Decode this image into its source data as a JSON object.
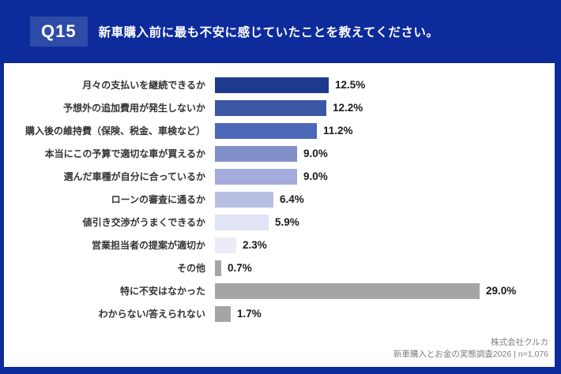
{
  "header": {
    "badge": "Q15",
    "title": "新車購入前に最も不安に感じていたことを教えてください。"
  },
  "colors": {
    "background": "#0d2b9b",
    "badge_bg": "#2e4ba8",
    "card_bg": "#ffffff",
    "label_color": "#333333",
    "value_color": "#1a1a1a",
    "gray_bar": "#a5a5a5"
  },
  "chart_data": {
    "type": "bar",
    "orientation": "horizontal",
    "title": "新車購入前に最も不安に感じていたこと",
    "unit": "%",
    "xlim": [
      0,
      31
    ],
    "grid": false,
    "legend": "none",
    "categories": [
      "月々の支払いを継続できるか",
      "予想外の追加費用が発生しないか",
      "購入後の維持費（保険、税金、車検など）",
      "本当にこの予算で適切な車が買えるか",
      "選んだ車種が自分に合っているか",
      "ローンの審査に通るか",
      "値引き交渉がうまくできるか",
      "営業担当者の提案が適切か",
      "その他",
      "特に不安はなかった",
      "わからない/答えられない"
    ],
    "values": [
      12.5,
      12.2,
      11.2,
      9.0,
      9.0,
      6.4,
      5.9,
      2.3,
      0.7,
      29.0,
      1.7
    ],
    "value_labels": [
      "12.5%",
      "12.2%",
      "11.2%",
      "9.0%",
      "9.0%",
      "6.4%",
      "5.9%",
      "2.3%",
      "0.7%",
      "29.0%",
      "1.7%"
    ],
    "bar_colors": [
      "#1e3a8e",
      "#3c56a6",
      "#4d68b8",
      "#8290c9",
      "#a2abd9",
      "#b9bfe2",
      "#e0e4f4",
      "#eaedf8",
      "#a5a5a5",
      "#a5a5a5",
      "#a5a5a5"
    ]
  },
  "footer": {
    "company": "株式会社クルカ",
    "source": "新車購入とお金の実態調査2026 | n=1,076"
  }
}
